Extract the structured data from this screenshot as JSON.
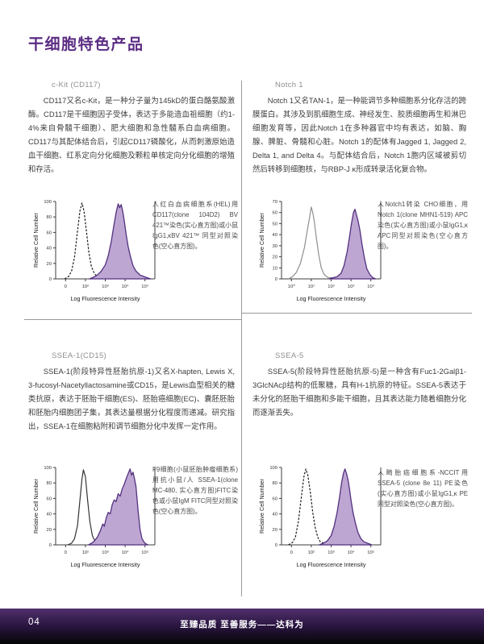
{
  "page": {
    "title": "干细胞特色产品",
    "footer": {
      "page_number": "04",
      "slogan": "至臻品质 至善服务——达科为"
    }
  },
  "colors": {
    "accent_purple": "#5b2c83",
    "histogram_fill": "#bda6d2",
    "histogram_stroke": "#53307f",
    "divider_gray": "#9a9a9a",
    "footer_gradient_top": "#50306c",
    "footer_gradient_bottom": "#050505"
  },
  "sections": [
    {
      "heading": "c-Kit (CD117)",
      "body": "CD117又名c-Kit，是一种分子量为145kD的蛋白酪氨酸激酶。CD117是干细胞因子受体，表达于多能造血祖细胞（约1-4%来自骨髓干细胞）、肥大细胞和急性髓系白血病细胞。CD117与其配体结合后，引起CD117磷酸化，从而刺激原始造血干细胞、红系定向分化细胞及颗粒单核定向分化细胞的增殖和存活。",
      "caption": "人红白血病细胞系(HEL)用CD117(clone 104D2) BV 421™染色(实心直方图)或小鼠IgG1,κBV 421™ 同型对照染色(空心直方图)。"
    },
    {
      "heading": "Notch 1",
      "body": "Notch 1又名TAN-1，是一种能调节多种细胞系分化存活的跨膜蛋白。其涉及到肌细胞生成、神经发生、胶质细胞再生和淋巴细胞发育等，因此Notch 1在多种器官中均有表达，如脑、胸腺、脾脏、骨髓和心脏。Notch 1的配体有Jagged 1, Jagged 2, Delta 1, and Delta 4。与配体结合后，Notch 1胞内区域被剪切然后转移到细胞核，与RBP-J κ形成转录活化复合物。",
      "caption": "人Notch1转染 CHO细胞，用 Notch 1(clone MHN1-519) APC染色(实心直方图)或小鼠IgG1,κ APC同型对照染色(空心直方图)。"
    },
    {
      "heading": "SSEA-1(CD15)",
      "body": "SSEA-1(阶段特异性胚胎抗原-1)又名X-hapten, Lewis X, 3-fucosyl-Nacetyllactosamine或CD15，是Lewis血型相关的糖类抗原，表达于胚胎干细胞(ES)、胚胎癌细胞(EC)、囊胚胚胎和胚胎内细胞团子集，其表达量根据分化程度而递减。研究指出，SSEA-1在细胞粘附和调节细胞分化中发挥一定作用。",
      "caption": "F9细胞(小鼠胚胎肿瘤细胞系)用抗小鼠/人 SSEA-1(clone MC-480, 实心直方图)FITC染色或小鼠IgM FITC同型对照染色(空心直方图)。"
    },
    {
      "heading": "SSEA-5",
      "body": "SSEA-5(阶段特异性胚胎抗原-5)是一种含有Fuc1-2Galβ1-3GlcNAcβ结构的低聚糖，具有H-1抗原的特征。SSEA-5表达于未分化的胚胎干细胞和多能干细胞，且其表达能力随着细胞分化而逐渐丢失。",
      "caption": "人畸胎癌细胞系-NCCIT用SSEA-5 (clone 8e 11) PE染色(实心直方图)或小鼠IgG1,κ PE同型对照染色(空心直方图)。"
    }
  ],
  "chart_data": [
    {
      "type": "area",
      "title": "CD117 on HEL cells",
      "xlabel": "Log Fluorescence Intensity",
      "ylabel": "Relative Cell Number",
      "ylim": [
        0,
        100
      ],
      "yticks": [
        0,
        20,
        40,
        60,
        80,
        100
      ],
      "xtick_labels": [
        "0",
        "10²",
        "10³",
        "10⁴",
        "10⁵"
      ],
      "xtick_pos": [
        0.1,
        0.3,
        0.5,
        0.7,
        0.9
      ],
      "legend": "none",
      "grid": false,
      "series": [
        {
          "name": "小鼠IgG1,κ BV 421 同型对照(空心)",
          "style": "open",
          "dash": true,
          "stroke": "#1a1a1a",
          "points": [
            [
              0.09,
              0
            ],
            [
              0.13,
              3
            ],
            [
              0.16,
              10
            ],
            [
              0.19,
              28
            ],
            [
              0.22,
              62
            ],
            [
              0.245,
              88
            ],
            [
              0.265,
              98
            ],
            [
              0.285,
              88
            ],
            [
              0.31,
              62
            ],
            [
              0.335,
              34
            ],
            [
              0.36,
              16
            ],
            [
              0.39,
              7
            ],
            [
              0.42,
              3
            ],
            [
              0.46,
              1
            ],
            [
              0.52,
              0
            ]
          ]
        },
        {
          "name": "CD117 (clone 104D2) BV 421(实心)",
          "style": "filled",
          "dash": false,
          "stroke": "#53307f",
          "fill": "#bda6d2",
          "points": [
            [
              0.34,
              0
            ],
            [
              0.38,
              2
            ],
            [
              0.42,
              5
            ],
            [
              0.46,
              10
            ],
            [
              0.5,
              18
            ],
            [
              0.53,
              30
            ],
            [
              0.56,
              48
            ],
            [
              0.585,
              68
            ],
            [
              0.61,
              86
            ],
            [
              0.63,
              97
            ],
            [
              0.645,
              92
            ],
            [
              0.66,
              96
            ],
            [
              0.675,
              88
            ],
            [
              0.69,
              76
            ],
            [
              0.71,
              58
            ],
            [
              0.73,
              42
            ],
            [
              0.755,
              28
            ],
            [
              0.78,
              17
            ],
            [
              0.81,
              10
            ],
            [
              0.85,
              5
            ],
            [
              0.89,
              3
            ],
            [
              0.93,
              1
            ],
            [
              0.96,
              0
            ]
          ]
        }
      ]
    },
    {
      "type": "area",
      "title": "Notch 1 on transfected CHO cells",
      "xlabel": "Log Fluorescence Intensity",
      "ylabel": "Relative Cell Number",
      "ylim": [
        0,
        70
      ],
      "yticks": [
        0,
        10,
        20,
        30,
        40,
        50,
        60,
        70
      ],
      "xtick_labels": [
        "10⁰",
        "10¹",
        "10²",
        "10³",
        "10⁴"
      ],
      "xtick_pos": [
        0.1,
        0.3,
        0.5,
        0.7,
        0.9
      ],
      "legend": "none",
      "grid": false,
      "series": [
        {
          "name": "小鼠IgG1,κ APC同型对照(空心)",
          "style": "open",
          "dash": false,
          "stroke": "#8f8f8f",
          "points": [
            [
              0.07,
              0
            ],
            [
              0.11,
              2
            ],
            [
              0.15,
              6
            ],
            [
              0.19,
              14
            ],
            [
              0.23,
              28
            ],
            [
              0.26,
              44
            ],
            [
              0.285,
              57
            ],
            [
              0.3,
              65
            ],
            [
              0.315,
              60
            ],
            [
              0.33,
              52
            ],
            [
              0.35,
              38
            ],
            [
              0.375,
              22
            ],
            [
              0.4,
              10
            ],
            [
              0.43,
              4
            ],
            [
              0.47,
              1
            ],
            [
              0.52,
              1
            ],
            [
              0.56,
              0
            ]
          ]
        },
        {
          "name": "Notch 1 (clone MHN1-519) APC(实心)",
          "style": "filled",
          "dash": false,
          "stroke": "#53307f",
          "fill": "#bda6d2",
          "points": [
            [
              0.48,
              0
            ],
            [
              0.52,
              1
            ],
            [
              0.56,
              2
            ],
            [
              0.6,
              5
            ],
            [
              0.63,
              12
            ],
            [
              0.66,
              24
            ],
            [
              0.685,
              38
            ],
            [
              0.705,
              50
            ],
            [
              0.725,
              60
            ],
            [
              0.74,
              63
            ],
            [
              0.755,
              58
            ],
            [
              0.77,
              53
            ],
            [
              0.79,
              44
            ],
            [
              0.81,
              32
            ],
            [
              0.835,
              19
            ],
            [
              0.86,
              9
            ],
            [
              0.89,
              4
            ],
            [
              0.92,
              1
            ],
            [
              0.95,
              0
            ]
          ]
        }
      ]
    },
    {
      "type": "area",
      "title": "SSEA-1 on F9 cells",
      "xlabel": "Log Fluorescence Intensity",
      "ylabel": "Relative Cell Number",
      "ylim": [
        0,
        100
      ],
      "yticks": [
        0,
        20,
        40,
        60,
        80,
        100
      ],
      "xtick_labels": [
        "0",
        "10²",
        "10³",
        "10⁴",
        "10⁵"
      ],
      "xtick_pos": [
        0.1,
        0.3,
        0.5,
        0.7,
        0.9
      ],
      "legend": "none",
      "grid": false,
      "series": [
        {
          "name": "小鼠IgM FITC同型对照(空心)",
          "style": "open",
          "dash": false,
          "stroke": "#333333",
          "points": [
            [
              0.12,
              0
            ],
            [
              0.16,
              2
            ],
            [
              0.19,
              8
            ],
            [
              0.22,
              25
            ],
            [
              0.245,
              58
            ],
            [
              0.265,
              85
            ],
            [
              0.28,
              97
            ],
            [
              0.3,
              88
            ],
            [
              0.32,
              60
            ],
            [
              0.345,
              30
            ],
            [
              0.37,
              12
            ],
            [
              0.4,
              4
            ],
            [
              0.44,
              1
            ],
            [
              0.48,
              0
            ]
          ]
        },
        {
          "name": "SSEA-1 (clone MC-480) FITC(实心)",
          "style": "filled",
          "dash": false,
          "stroke": "#53307f",
          "fill": "#bda6d2",
          "points": [
            [
              0.33,
              0
            ],
            [
              0.36,
              2
            ],
            [
              0.39,
              5
            ],
            [
              0.42,
              10
            ],
            [
              0.45,
              18
            ],
            [
              0.475,
              27
            ],
            [
              0.49,
              24
            ],
            [
              0.51,
              35
            ],
            [
              0.53,
              42
            ],
            [
              0.55,
              40
            ],
            [
              0.57,
              52
            ],
            [
              0.59,
              58
            ],
            [
              0.61,
              56
            ],
            [
              0.63,
              66
            ],
            [
              0.65,
              63
            ],
            [
              0.67,
              72
            ],
            [
              0.69,
              78
            ],
            [
              0.71,
              85
            ],
            [
              0.73,
              92
            ],
            [
              0.75,
              98
            ],
            [
              0.765,
              90
            ],
            [
              0.78,
              94
            ],
            [
              0.795,
              85
            ],
            [
              0.81,
              75
            ],
            [
              0.83,
              45
            ],
            [
              0.85,
              20
            ],
            [
              0.87,
              8
            ],
            [
              0.9,
              2
            ],
            [
              0.93,
              0
            ]
          ]
        }
      ]
    },
    {
      "type": "area",
      "title": "SSEA-5 on NCCIT cells",
      "xlabel": "Log Fluorescence Intensity",
      "ylabel": "Relative Cell Number",
      "ylim": [
        0,
        100
      ],
      "yticks": [
        0,
        20,
        40,
        60,
        80,
        100
      ],
      "xtick_labels": [
        "0",
        "10²",
        "10³",
        "10⁴",
        "10⁵"
      ],
      "xtick_pos": [
        0.1,
        0.3,
        0.5,
        0.7,
        0.9
      ],
      "legend": "none",
      "grid": false,
      "series": [
        {
          "name": "小鼠IgG1,κ PE同型对照(空心)",
          "style": "open",
          "dash": true,
          "stroke": "#1a1a1a",
          "points": [
            [
              0.07,
              0
            ],
            [
              0.11,
              3
            ],
            [
              0.14,
              10
            ],
            [
              0.17,
              30
            ],
            [
              0.2,
              62
            ],
            [
              0.225,
              88
            ],
            [
              0.245,
              98
            ],
            [
              0.265,
              90
            ],
            [
              0.29,
              68
            ],
            [
              0.315,
              42
            ],
            [
              0.34,
              22
            ],
            [
              0.365,
              10
            ],
            [
              0.39,
              4
            ],
            [
              0.43,
              2
            ],
            [
              0.47,
              1
            ],
            [
              0.52,
              0
            ]
          ]
        },
        {
          "name": "SSEA-5 (clone 8e 11) PE(实心)",
          "style": "filled",
          "dash": false,
          "stroke": "#53307f",
          "fill": "#bda6d2",
          "points": [
            [
              0.38,
              0
            ],
            [
              0.42,
              2
            ],
            [
              0.46,
              5
            ],
            [
              0.5,
              12
            ],
            [
              0.53,
              24
            ],
            [
              0.56,
              42
            ],
            [
              0.585,
              62
            ],
            [
              0.605,
              80
            ],
            [
              0.625,
              93
            ],
            [
              0.64,
              98
            ],
            [
              0.655,
              92
            ],
            [
              0.67,
              84
            ],
            [
              0.685,
              72
            ],
            [
              0.7,
              58
            ],
            [
              0.72,
              42
            ],
            [
              0.745,
              28
            ],
            [
              0.77,
              16
            ],
            [
              0.8,
              8
            ],
            [
              0.83,
              4
            ],
            [
              0.87,
              2
            ],
            [
              0.91,
              0
            ]
          ]
        }
      ]
    }
  ]
}
